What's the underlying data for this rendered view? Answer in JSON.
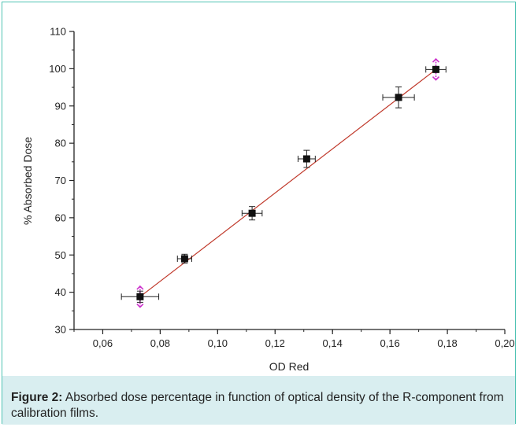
{
  "figure": {
    "label": "Figure 2:",
    "caption": " Absorbed dose percentage in function of optical density of the R-component from calibration films."
  },
  "colors": {
    "frame": "#4fc3b3",
    "caption_bg": "#d9eef0",
    "fit_line": "#c0392b",
    "points": "#111111",
    "highlight_errorbars": "#cc33cc"
  },
  "chart_data": {
    "type": "scatter",
    "xlabel": "OD Red",
    "ylabel": "% Absorbed Dose",
    "xlim": [
      0.05,
      0.2
    ],
    "ylim": [
      30,
      110
    ],
    "x_ticks": [
      0.06,
      0.08,
      0.1,
      0.12,
      0.14,
      0.16,
      0.18,
      0.2
    ],
    "x_tick_labels": [
      "0,06",
      "0,08",
      "0,10",
      "0,12",
      "0,14",
      "0,16",
      "0,18",
      "0,20"
    ],
    "y_ticks": [
      30,
      40,
      50,
      60,
      70,
      80,
      90,
      100,
      110
    ],
    "y_tick_labels": [
      "30",
      "40",
      "50",
      "60",
      "70",
      "80",
      "90",
      "100",
      "110"
    ],
    "grid": false,
    "points": [
      {
        "x": 0.073,
        "y": 38.8,
        "xerr": 0.0065,
        "yerr": 1.5
      },
      {
        "x": 0.0885,
        "y": 49.0,
        "xerr": 0.0025,
        "yerr": 1.2
      },
      {
        "x": 0.112,
        "y": 61.2,
        "xerr": 0.0035,
        "yerr": 1.8
      },
      {
        "x": 0.131,
        "y": 75.8,
        "xerr": 0.003,
        "yerr": 2.3
      },
      {
        "x": 0.163,
        "y": 92.3,
        "xerr": 0.0055,
        "yerr": 2.8
      },
      {
        "x": 0.176,
        "y": 99.8,
        "xerr": 0.0035,
        "yerr": 0.8
      }
    ],
    "fit_line": {
      "x": [
        0.073,
        0.176
      ],
      "y": [
        38.8,
        99.8
      ]
    },
    "highlight_points": [
      {
        "x": 0.073,
        "y": 38.8,
        "yerr": 2.8
      },
      {
        "x": 0.176,
        "y": 99.8,
        "yerr": 2.8
      }
    ]
  }
}
